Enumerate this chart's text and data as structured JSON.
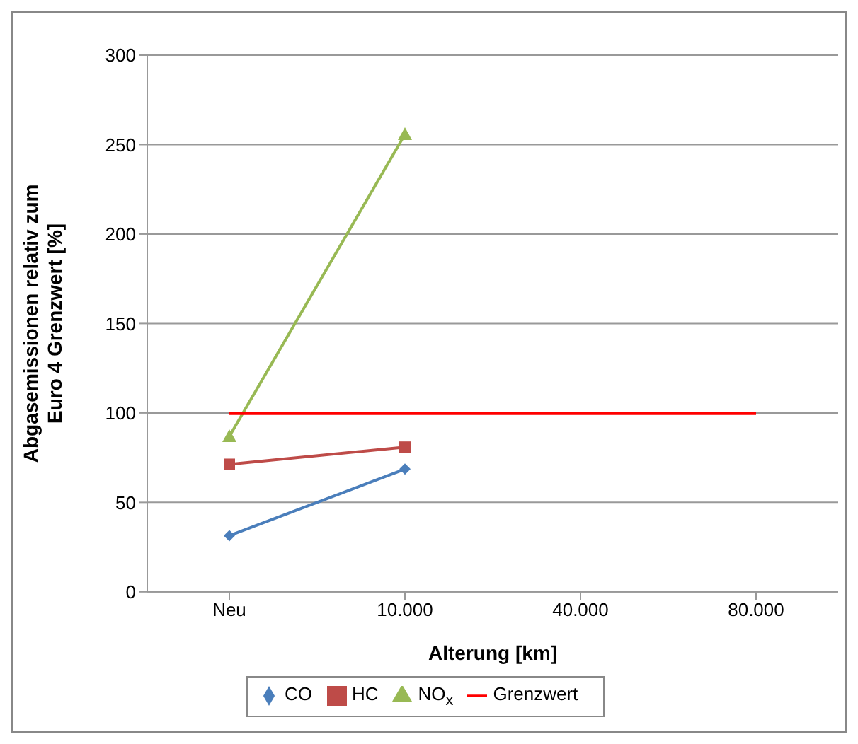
{
  "chart_data": {
    "type": "line",
    "xlabel": "Alterung [km]",
    "ylabel": "Abgasemissionen relativ zum\nEuro 4 Grenzwert  [%]",
    "categories": [
      "Neu",
      "10.000",
      "40.000",
      "80.000"
    ],
    "series": [
      {
        "name": "CO",
        "color": "#4a7ebb",
        "marker": "diamond",
        "values": [
          31.4,
          68.6,
          null,
          null
        ]
      },
      {
        "name": "HC",
        "color": "#be4b48",
        "marker": "square",
        "values": [
          71.3,
          80.9,
          null,
          null
        ]
      },
      {
        "name": "NO$_{x}$",
        "color": "#98b954",
        "marker": "triangle",
        "values": [
          86.9,
          255.7,
          null,
          null
        ]
      },
      {
        "name": "Grenzwert",
        "color": "#ff0000",
        "marker": "none",
        "values": [
          99.7,
          99.7,
          99.7,
          99.7
        ]
      }
    ],
    "ylim": [
      0,
      300
    ],
    "yticks": [
      0,
      50,
      100,
      150,
      200,
      250,
      300
    ],
    "grid": "y",
    "legend": "bottom"
  }
}
